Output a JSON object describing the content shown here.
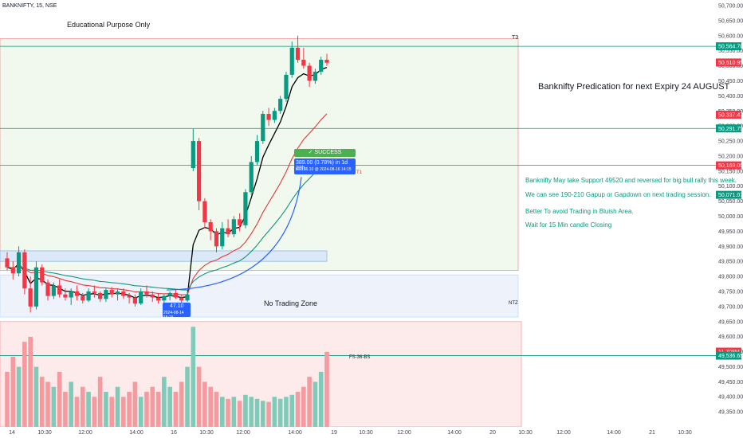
{
  "header": {
    "symbol": "BANKNIFTY, 15, NSE"
  },
  "annotations": {
    "edu": "Educational Purpose Only",
    "headline": "Banknifty Predication for next Expiry 24 AUGUST",
    "notes": [
      "Banknifty May take Support 49520 and reversed for big bull rally this week.",
      "We can see 190-210 Gapup or Gapdown on next trading session.",
      "Better To avoid Trading in Bluish Area.",
      "Wait for 15 Min candle Closing"
    ],
    "no_trade": "No Trading Zone",
    "ntz": "NTZ",
    "t3": "T3",
    "t1": "T1",
    "fs": "FS-36-BS",
    "success": "✓ SUCCESS",
    "measure_line1": "389.00 (0.78%) in 1d 23h",
    "measure_line2": "50,136.10 @ 2024-08-16 14:15",
    "start_line1": "47.10",
    "start_line2": "2024-08-14 15:15"
  },
  "colors": {
    "up": "#089981",
    "down": "#f23645",
    "green_zone": "#f1f8ee",
    "red_zone": "#fdeaea",
    "blue_zone": "#eef3fb",
    "blue": "#2962ff",
    "ema_black": "#000000",
    "ema_red": "#e53935",
    "ema_teal": "#13957a"
  },
  "chart_data": {
    "type": "candlestick",
    "y_range": [
      49300,
      50700
    ],
    "y_ticks": [
      "50,700.00",
      "50,650.00",
      "50,600.00",
      "50,550.00",
      "50,500.00",
      "50,450.00",
      "50,400.00",
      "50,350.00",
      "50,300.00",
      "50,250.00",
      "50,200.00",
      "50,150.00",
      "50,100.00",
      "50,050.00",
      "50,000.00",
      "49,950.00",
      "49,900.00",
      "49,850.00",
      "49,800.00",
      "49,750.00",
      "49,700.00",
      "49,650.00",
      "49,600.00",
      "49,550.00",
      "49,500.00",
      "49,450.00",
      "49,400.00",
      "49,350.00"
    ],
    "x_ticks": [
      "14",
      "10:30",
      "12:00",
      "14:00",
      "16",
      "10:30",
      "12:00",
      "14:00",
      "19",
      "10:30",
      "12:00",
      "14:00",
      "20",
      "10:30",
      "12:00",
      "14:00",
      "21",
      "10:30"
    ],
    "price_labels": [
      {
        "value": 50564.7,
        "label": "50,564.70",
        "kind": "green"
      },
      {
        "value": 50510.95,
        "label": "50,510.95",
        "kind": "red"
      },
      {
        "value": 50337.47,
        "label": "50,337.47",
        "kind": "red"
      },
      {
        "value": 50291.75,
        "label": "50,291.75",
        "kind": "green"
      },
      {
        "value": 50169.0,
        "label": "50,169.00",
        "kind": "red"
      },
      {
        "value": 50071.07,
        "label": "50,071.07",
        "kind": "green"
      },
      {
        "value": 49550.0,
        "label": "11.708M",
        "kind": "red"
      },
      {
        "value": 49536.65,
        "label": "49,536.65",
        "kind": "green"
      }
    ],
    "levels": {
      "t3": 50590,
      "t1_line": 50169,
      "top_green": 50564.7,
      "mid_green": 50291.75,
      "fs": 49536.65
    },
    "zones": {
      "green": [
        49820,
        50590
      ],
      "blue_band": [
        49850,
        49885
      ],
      "no_trade": [
        49665,
        49805
      ],
      "volume": [
        49300,
        49650
      ]
    },
    "candles": [
      [
        49860,
        49880,
        49820,
        49830
      ],
      [
        49830,
        49850,
        49790,
        49810
      ],
      [
        49810,
        49900,
        49800,
        49880
      ],
      [
        49880,
        49890,
        49740,
        49760
      ],
      [
        49760,
        49800,
        49680,
        49700
      ],
      [
        49700,
        49850,
        49690,
        49830
      ],
      [
        49830,
        49840,
        49770,
        49780
      ],
      [
        49780,
        49790,
        49720,
        49735
      ],
      [
        49735,
        49780,
        49725,
        49770
      ],
      [
        49770,
        49790,
        49730,
        49740
      ],
      [
        49740,
        49760,
        49720,
        49730
      ],
      [
        49730,
        49760,
        49705,
        49750
      ],
      [
        49750,
        49770,
        49720,
        49735
      ],
      [
        49735,
        49745,
        49710,
        49720
      ],
      [
        49720,
        49760,
        49715,
        49750
      ],
      [
        49750,
        49770,
        49730,
        49745
      ],
      [
        49745,
        49750,
        49715,
        49725
      ],
      [
        49725,
        49760,
        49715,
        49755
      ],
      [
        49755,
        49765,
        49730,
        49740
      ],
      [
        49740,
        49760,
        49720,
        49750
      ],
      [
        49750,
        49760,
        49725,
        49735
      ],
      [
        49735,
        49745,
        49710,
        49730
      ],
      [
        49730,
        49740,
        49700,
        49710
      ],
      [
        49710,
        49760,
        49705,
        49750
      ],
      [
        49750,
        49770,
        49730,
        49740
      ],
      [
        49740,
        49750,
        49715,
        49730
      ],
      [
        49730,
        49745,
        49710,
        49720
      ],
      [
        49720,
        49740,
        49700,
        49735
      ],
      [
        49735,
        49750,
        49720,
        49745
      ],
      [
        49745,
        49755,
        49725,
        49730
      ],
      [
        49730,
        49740,
        49705,
        49720
      ],
      [
        49720,
        49750,
        49715,
        49740
      ],
      [
        50160,
        50290,
        50150,
        50250
      ],
      [
        50250,
        50260,
        50020,
        50050
      ],
      [
        50050,
        50060,
        49960,
        49980
      ],
      [
        49980,
        49990,
        49920,
        49950
      ],
      [
        49950,
        49960,
        49880,
        49900
      ],
      [
        49900,
        49980,
        49890,
        49960
      ],
      [
        49960,
        49990,
        49930,
        49940
      ],
      [
        49940,
        50000,
        49930,
        49990
      ],
      [
        49990,
        50010,
        49950,
        49970
      ],
      [
        49970,
        50090,
        49960,
        50080
      ],
      [
        50080,
        50200,
        50070,
        50180
      ],
      [
        50180,
        50270,
        50170,
        50250
      ],
      [
        50250,
        50350,
        50240,
        50340
      ],
      [
        50340,
        50360,
        50300,
        50320
      ],
      [
        50320,
        50360,
        50310,
        50350
      ],
      [
        50350,
        50400,
        50340,
        50390
      ],
      [
        50390,
        50480,
        50380,
        50470
      ],
      [
        50470,
        50580,
        50460,
        50560
      ],
      [
        50560,
        50600,
        50510,
        50520
      ],
      [
        50520,
        50560,
        50490,
        50500
      ],
      [
        50500,
        50510,
        50430,
        50450
      ],
      [
        50450,
        50490,
        50440,
        50480
      ],
      [
        50480,
        50530,
        50470,
        50520
      ],
      [
        50520,
        50540,
        50500,
        50510
      ]
    ],
    "volumes": [
      0.55,
      0.7,
      0.6,
      0.85,
      0.9,
      0.6,
      0.5,
      0.45,
      0.4,
      0.55,
      0.35,
      0.45,
      0.3,
      0.4,
      0.35,
      0.3,
      0.5,
      0.35,
      0.3,
      0.4,
      0.3,
      0.35,
      0.45,
      0.3,
      0.35,
      0.4,
      0.35,
      0.5,
      0.4,
      0.35,
      0.45,
      0.6,
      1.0,
      0.6,
      0.45,
      0.4,
      0.35,
      0.3,
      0.28,
      0.3,
      0.26,
      0.32,
      0.3,
      0.28,
      0.26,
      0.25,
      0.3,
      0.28,
      0.3,
      0.32,
      0.35,
      0.4,
      0.5,
      0.45,
      0.55,
      0.75
    ]
  }
}
